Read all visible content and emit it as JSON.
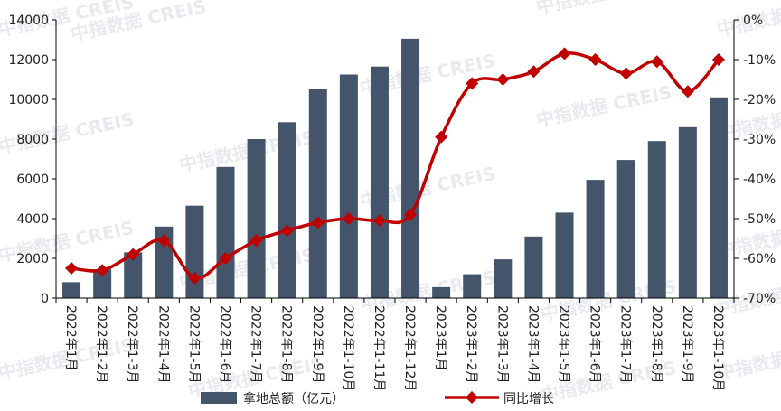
{
  "watermark": {
    "text": "中指数据 CREIS"
  },
  "colors": {
    "bar": "#44546a",
    "line": "#c00000",
    "marker": "#c00000",
    "axis": "#000000"
  },
  "chart_data": {
    "type": "bar",
    "title": "",
    "xlabel": "",
    "ylabel": "",
    "categories": [
      "2022年1月",
      "2022年1-2月",
      "2022年1-3月",
      "2022年1-4月",
      "2022年1-5月",
      "2022年1-6月",
      "2022年1-7月",
      "2022年1-8月",
      "2022年1-9月",
      "2022年1-10月",
      "2022年1-11月",
      "2022年1-12月",
      "2023年1月",
      "2023年1-2月",
      "2023年1-3月",
      "2023年1-4月",
      "2023年1-5月",
      "2023年1-6月",
      "2023年1-7月",
      "2023年1-8月",
      "2023年1-9月",
      "2023年1-10月"
    ],
    "ylim": [
      0,
      14000
    ],
    "y_ticks": [
      "0",
      "2000",
      "4000",
      "6000",
      "8000",
      "10000",
      "12000",
      "14000"
    ],
    "y2lim": [
      -70,
      0
    ],
    "y2_ticks": [
      "-70%",
      "-60%",
      "-50%",
      "-40%",
      "-30%",
      "-20%",
      "-10%",
      "0%"
    ],
    "grid": false,
    "legend_position": "bottom",
    "series": [
      {
        "name": "拿地总额（亿元）",
        "type": "bar",
        "axis": "left",
        "values": [
          800,
          1450,
          2300,
          3600,
          4650,
          6600,
          8000,
          8850,
          10500,
          11250,
          11650,
          13050,
          550,
          1200,
          1950,
          3100,
          4300,
          5950,
          6950,
          7900,
          8600,
          10100
        ]
      },
      {
        "name": "同比增长",
        "type": "line",
        "axis": "right",
        "values": [
          -62.5,
          -63,
          -59,
          -55.5,
          -65,
          -60,
          -55.5,
          -53,
          -51,
          -50,
          -50.5,
          -49,
          -29.5,
          -16,
          -15,
          -13,
          -8.5,
          -10,
          -13.5,
          -10.5,
          -18,
          -10
        ]
      }
    ]
  }
}
